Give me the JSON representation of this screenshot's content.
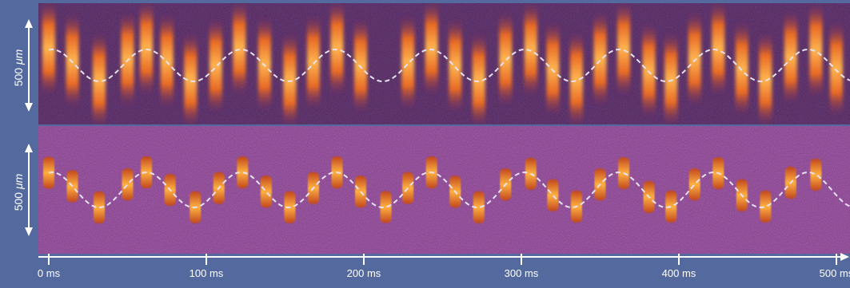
{
  "panels": {
    "top": {
      "scale_bar_value": "500",
      "scale_bar_unit": "μm",
      "pulse_offsets_ms": [
        0,
        15,
        32,
        50,
        62,
        75,
        90,
        106,
        121,
        137,
        153,
        168,
        183,
        198,
        228,
        243,
        258,
        273,
        290,
        306,
        320,
        335,
        350,
        365,
        381,
        395,
        410,
        425,
        440,
        455,
        471,
        487,
        500
      ],
      "wave_color": "#e6e3f0",
      "wave_period_ms": 60
    },
    "bottom": {
      "scale_bar_value": "500",
      "scale_bar_unit": "μm",
      "pulse_offsets_ms": [
        0,
        15,
        32,
        50,
        62,
        77,
        93,
        108,
        123,
        138,
        153,
        168,
        183,
        198,
        214,
        228,
        243,
        258,
        273,
        290,
        306,
        320,
        335,
        350,
        365,
        381,
        395,
        410,
        425,
        440,
        455,
        471,
        487
      ],
      "wave_color": "#e6e3f0",
      "wave_period_ms": 60
    }
  },
  "time_axis": {
    "range_ms": [
      0,
      510
    ],
    "ticks": [
      {
        "value": 0,
        "label": "0 ms"
      },
      {
        "value": 100,
        "label": "100 ms"
      },
      {
        "value": 200,
        "label": "200 ms"
      },
      {
        "value": 300,
        "label": "300 ms"
      },
      {
        "value": 400,
        "label": "400 ms"
      },
      {
        "value": 500,
        "label": "500 ms"
      }
    ]
  },
  "colors": {
    "background": "#54699e",
    "colormap_low": "#1c0c2e",
    "colormap_mid": "#5c1c60",
    "colormap_high": "#f98a1a",
    "colormap_peak": "#ffd07a",
    "annotation": "#ffffff"
  }
}
